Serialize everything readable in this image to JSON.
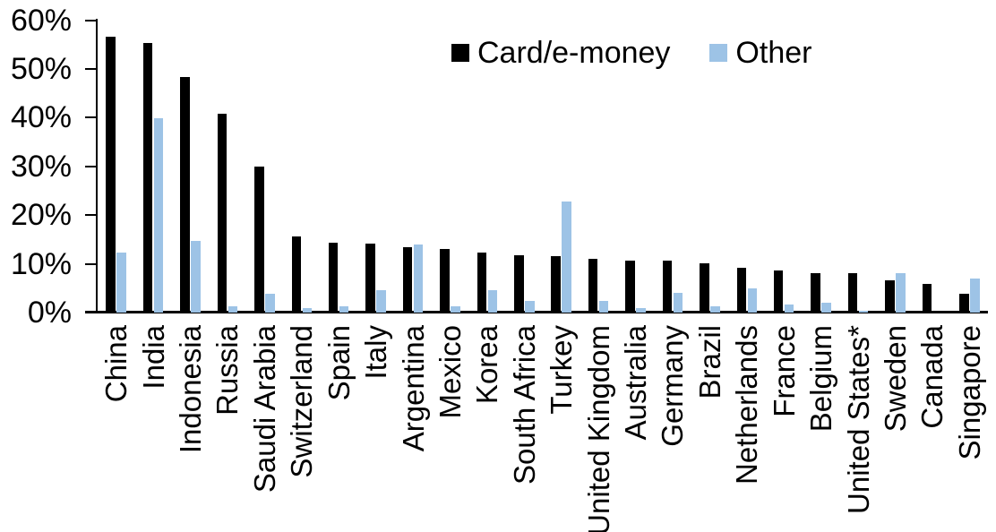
{
  "chart_data": {
    "type": "bar",
    "title": "",
    "xlabel": "",
    "ylabel": "",
    "ylim": [
      0,
      60
    ],
    "ytick_labels": [
      "0%",
      "10%",
      "20%",
      "30%",
      "40%",
      "50%",
      "60%"
    ],
    "grid": false,
    "legend_position": "top-center",
    "categories": [
      "China",
      "India",
      "Indonesia",
      "Russia",
      "Saudi Arabia",
      "Switzerland",
      "Spain",
      "Italy",
      "Argentina",
      "Mexico",
      "Korea",
      "South Africa",
      "Turkey",
      "United Kingdom",
      "Australia",
      "Germany",
      "Brazil",
      "Netherlands",
      "France",
      "Belgium",
      "United States*",
      "Sweden",
      "Canada",
      "Singapore"
    ],
    "series": [
      {
        "name": "Card/e-money",
        "color": "#000000",
        "values": [
          56.6,
          55.3,
          48.4,
          40.8,
          30.0,
          15.7,
          14.3,
          14.1,
          13.5,
          13.0,
          12.3,
          11.8,
          11.6,
          11.0,
          10.7,
          10.7,
          10.1,
          9.2,
          8.7,
          8.1,
          8.0,
          6.6,
          5.9,
          3.9
        ]
      },
      {
        "name": "Other",
        "color": "#9dc3e6",
        "values": [
          12.4,
          39.9,
          14.7,
          1.2,
          3.9,
          0.9,
          1.2,
          4.6,
          13.9,
          1.3,
          4.6,
          2.4,
          22.7,
          2.4,
          1.0,
          4.0,
          1.2,
          5.0,
          1.7,
          2.1,
          0.3,
          8.1,
          0.0,
          6.9
        ]
      }
    ]
  }
}
